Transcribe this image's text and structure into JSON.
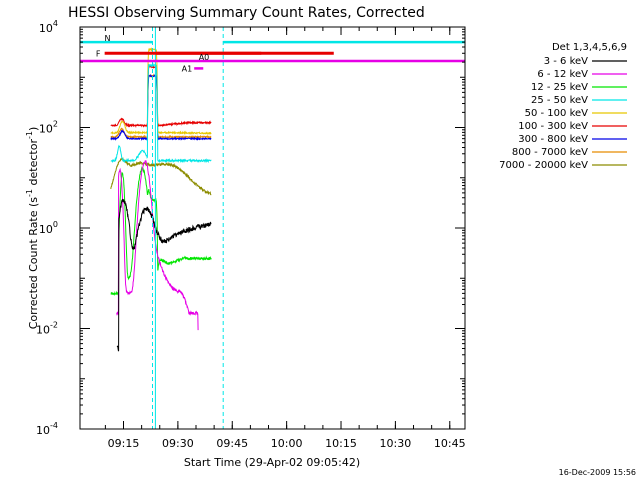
{
  "chart_data": {
    "type": "line",
    "title": "HESSI Observing Summary Count Rates, Corrected",
    "xlabel": "Start Time (29-Apr-02 09:05:42)",
    "ylabel": "Corrected Count Rate (s",
    "ylabel_sup1": "-1",
    "ylabel_mid": " detector",
    "ylabel_sup2": "-1",
    "ylabel_end": ")",
    "yscale": "log",
    "ylim": [
      0.0001,
      10000
    ],
    "xlim_minutes": [
      9.05,
      10.82
    ],
    "x_tick_labels": [
      "09:15",
      "09:30",
      "09:45",
      "10:00",
      "10:15",
      "10:30",
      "10:45"
    ],
    "y_ticks": [
      {
        "base": "10",
        "exp": "-4"
      },
      {
        "base": "10",
        "exp": "-2"
      },
      {
        "base": "10",
        "exp": "0"
      },
      {
        "base": "10",
        "exp": "2"
      },
      {
        "base": "10",
        "exp": "4"
      }
    ],
    "legend_title": "Det 1,3,4,5,6,9",
    "series": [
      {
        "name": "3 - 6 keV",
        "color": "#000000"
      },
      {
        "name": "6 - 12 keV",
        "color": "#e600e6"
      },
      {
        "name": "12 - 25 keV",
        "color": "#00e600"
      },
      {
        "name": "25 - 50 keV",
        "color": "#00e6e6"
      },
      {
        "name": "50 - 100 keV",
        "color": "#e6c800"
      },
      {
        "name": "100 - 300 keV",
        "color": "#e60000"
      },
      {
        "name": "300 - 800 keV",
        "color": "#0000e6"
      },
      {
        "name": "800 - 7000 keV",
        "color": "#e68c00"
      },
      {
        "name": "7000 - 20000 keV",
        "color": "#8c8c00"
      }
    ],
    "flags": [
      {
        "label": "N",
        "color": "#00e6e6"
      },
      {
        "label": "F",
        "color": "#e60000"
      },
      {
        "label": "A0",
        "color": "#e600e6"
      },
      {
        "label": "A1",
        "color": "#e600e6"
      }
    ],
    "footer_date": "16-Dec-2009 15:56"
  }
}
